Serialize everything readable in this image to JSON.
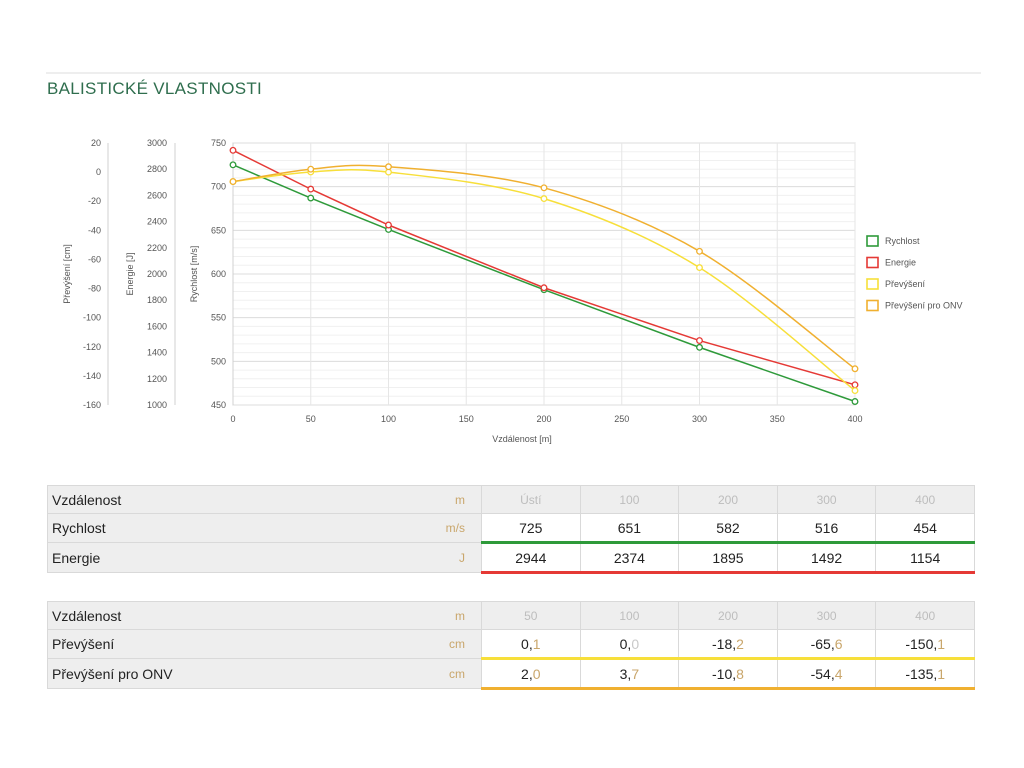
{
  "header": {
    "title": "BALISTICKÉ VLASTNOSTI"
  },
  "chart_data": {
    "type": "line",
    "xlabel": "Vzdálenost [m]",
    "xlim": [
      0,
      400
    ],
    "xticks": [
      0,
      50,
      100,
      150,
      200,
      250,
      300,
      350,
      400
    ],
    "grid": true,
    "legend_placement": "right",
    "axes": [
      {
        "label": "Převýšení [cm]",
        "ticks": [
          20,
          0,
          -20,
          -40,
          -60,
          -80,
          -100,
          -120,
          -140,
          -160
        ],
        "lim": [
          -160,
          20
        ]
      },
      {
        "label": "Energie [J]",
        "ticks": [
          3000,
          2800,
          2600,
          2400,
          2200,
          2000,
          1800,
          1600,
          1400,
          1200,
          1000
        ],
        "lim": [
          1000,
          3000
        ]
      },
      {
        "label": "Rychlost [m/s]",
        "ticks": [
          750,
          700,
          650,
          600,
          550,
          500,
          450
        ],
        "lim": [
          450,
          750
        ]
      }
    ],
    "series": [
      {
        "name": "Rychlost",
        "axis": 2,
        "color": "#2e9a3a",
        "x": [
          0,
          50,
          100,
          200,
          300,
          400
        ],
        "values": [
          725,
          687,
          651,
          582,
          516,
          454
        ]
      },
      {
        "name": "Energie",
        "axis": 1,
        "color": "#e53935",
        "x": [
          0,
          50,
          100,
          200,
          300,
          400
        ],
        "values": [
          2944,
          2648,
          2374,
          1895,
          1492,
          1154
        ]
      },
      {
        "name": "Převýšení",
        "axis": 0,
        "color": "#f7df3a",
        "x": [
          0,
          50,
          100,
          200,
          300,
          400
        ],
        "values": [
          -6.5,
          0.1,
          0.0,
          -18.2,
          -65.6,
          -150.1
        ]
      },
      {
        "name": "Převýšení pro ONV",
        "axis": 0,
        "color": "#f0b030",
        "x": [
          0,
          50,
          100,
          200,
          300,
          400
        ],
        "values": [
          -6.5,
          2.0,
          3.7,
          -10.8,
          -54.4,
          -135.1
        ]
      }
    ]
  },
  "table1": {
    "header": {
      "label": "Vzdálenost",
      "unit": "m",
      "cols": [
        "Ústí",
        "100",
        "200",
        "300",
        "400"
      ]
    },
    "rows": [
      {
        "label": "Rychlost",
        "unit": "m/s",
        "color": "#2e9a3a",
        "values": [
          {
            "i": "725",
            "d": ""
          },
          {
            "i": "651",
            "d": ""
          },
          {
            "i": "582",
            "d": ""
          },
          {
            "i": "516",
            "d": ""
          },
          {
            "i": "454",
            "d": ""
          }
        ]
      },
      {
        "label": "Energie",
        "unit": "J",
        "color": "#e53935",
        "values": [
          {
            "i": "2944",
            "d": ""
          },
          {
            "i": "2374",
            "d": ""
          },
          {
            "i": "1895",
            "d": ""
          },
          {
            "i": "1492",
            "d": ""
          },
          {
            "i": "1154",
            "d": ""
          }
        ]
      }
    ]
  },
  "table2": {
    "header": {
      "label": "Vzdálenost",
      "unit": "m",
      "cols": [
        "50",
        "100",
        "200",
        "300",
        "400"
      ]
    },
    "rows": [
      {
        "label": "Převýšení",
        "unit": "cm",
        "color": "#f7df3a",
        "values": [
          {
            "i": "0,",
            "d": "1"
          },
          {
            "i": "0,",
            "d": "0",
            "muted": true
          },
          {
            "i": "-18,",
            "d": "2"
          },
          {
            "i": "-65,",
            "d": "6"
          },
          {
            "i": "-150,",
            "d": "1"
          }
        ]
      },
      {
        "label": "Převýšení pro ONV",
        "unit": "cm",
        "color": "#f0b030",
        "values": [
          {
            "i": "2,",
            "d": "0"
          },
          {
            "i": "3,",
            "d": "7"
          },
          {
            "i": "-10,",
            "d": "8"
          },
          {
            "i": "-54,",
            "d": "4"
          },
          {
            "i": "-135,",
            "d": "1"
          }
        ]
      }
    ]
  }
}
